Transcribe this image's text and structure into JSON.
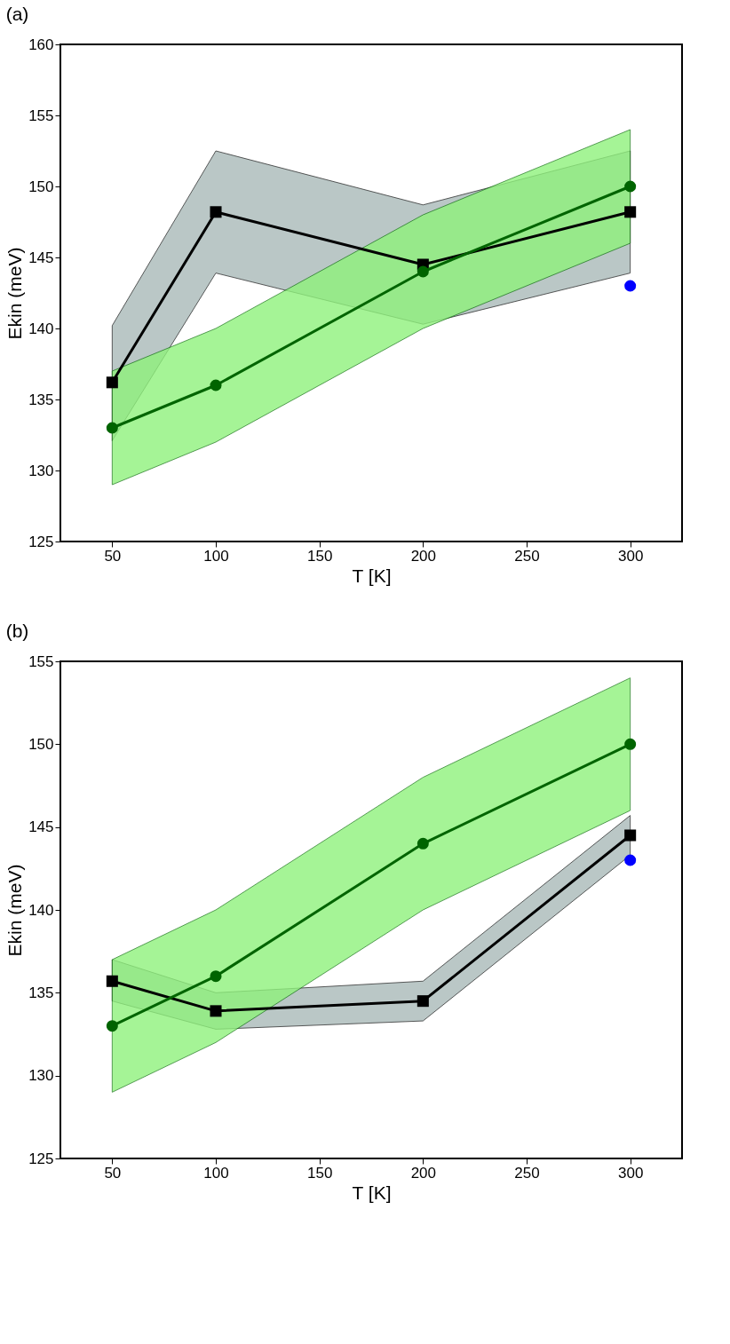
{
  "chart_data": [
    {
      "type": "line",
      "title": "(a)",
      "xlabel": "T [K]",
      "ylabel": "Ekin (meV)",
      "x": [
        50,
        100,
        200,
        300
      ],
      "xlim": [
        25,
        325
      ],
      "xticks": [
        50,
        100,
        150,
        200,
        250,
        300
      ],
      "ylim": [
        125,
        160
      ],
      "yticks": [
        125,
        130,
        135,
        140,
        145,
        150,
        155,
        160
      ],
      "grid": false,
      "line_style": "solid",
      "series": [
        {
          "marker": "square",
          "color": "#000000",
          "values": [
            136.2,
            148.2,
            144.5,
            148.2
          ],
          "lower": [
            132.1,
            143.9,
            140.3,
            143.9
          ],
          "upper": [
            140.2,
            152.5,
            148.7,
            152.5
          ]
        },
        {
          "marker": "circle",
          "color": "#006400",
          "values": [
            133,
            136,
            144,
            150
          ],
          "lower": [
            129,
            132,
            140,
            146
          ],
          "upper": [
            137,
            140,
            148,
            154
          ]
        },
        {
          "type": "scatter",
          "marker": "circle",
          "color": "#0000ff",
          "x": [
            300
          ],
          "values": [
            143
          ]
        }
      ]
    },
    {
      "type": "line",
      "title": "(b)",
      "xlabel": "T [K]",
      "ylabel": "Ekin (meV)",
      "x": [
        50,
        100,
        200,
        300
      ],
      "xlim": [
        25,
        325
      ],
      "xticks": [
        50,
        100,
        150,
        200,
        250,
        300
      ],
      "ylim": [
        125,
        155
      ],
      "yticks": [
        125,
        130,
        135,
        140,
        145,
        150,
        155
      ],
      "grid": false,
      "line_style": "solid",
      "series": [
        {
          "marker": "square",
          "color": "#000000",
          "values": [
            135.7,
            133.9,
            134.5,
            144.5
          ],
          "lower": [
            134.5,
            132.8,
            133.3,
            143.3
          ],
          "upper": [
            137,
            135,
            135.7,
            145.7
          ]
        },
        {
          "marker": "circle",
          "color": "#006400",
          "values": [
            133,
            136,
            144,
            150
          ],
          "lower": [
            129,
            132,
            140,
            146
          ],
          "upper": [
            137,
            140,
            148,
            154
          ]
        },
        {
          "type": "scatter",
          "marker": "circle",
          "color": "#0000ff",
          "x": [
            300
          ],
          "values": [
            143
          ]
        }
      ]
    }
  ]
}
